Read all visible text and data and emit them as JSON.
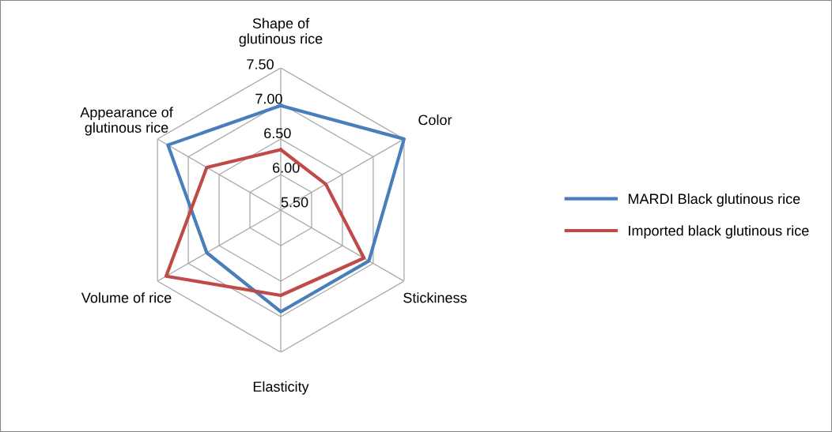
{
  "chart_data": {
    "type": "radar",
    "categories": [
      "Shape of\nglutinous rice",
      "Color",
      "Stickiness",
      "Elasticity",
      "Volume of rice",
      "Appearance of\nglutinous rice"
    ],
    "series": [
      {
        "name": "MARDI Black glutinous rice",
        "color": "#4a7ebb",
        "values": [
          6.97,
          7.5,
          6.93,
          6.93,
          6.7,
          7.33
        ]
      },
      {
        "name": "Imported black glutinous rice",
        "color": "#be4b48",
        "values": [
          6.35,
          6.23,
          6.85,
          6.7,
          7.36,
          6.7
        ]
      }
    ],
    "ylim": [
      5.5,
      7.5
    ],
    "yticks": [
      {
        "value": 5.5,
        "label": "5.50"
      },
      {
        "value": 6.0,
        "label": "6.00"
      },
      {
        "value": 6.5,
        "label": "6.50"
      },
      {
        "value": 7.0,
        "label": "7.00"
      },
      {
        "value": 7.5,
        "label": "7.50"
      }
    ],
    "grid": true,
    "legend": "right",
    "marker": "none",
    "line_style": "solid"
  }
}
